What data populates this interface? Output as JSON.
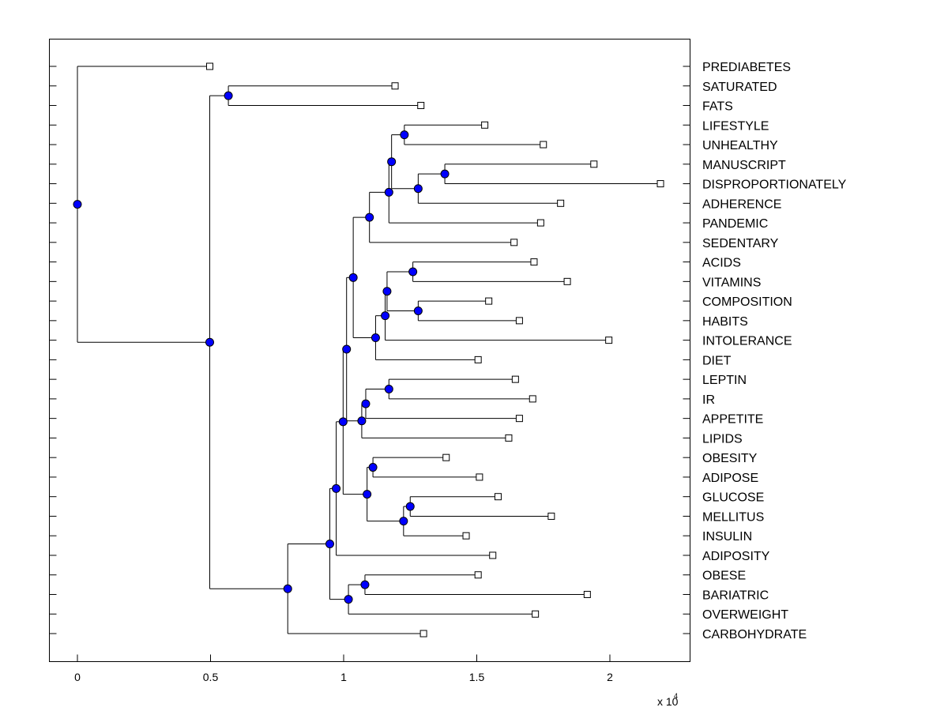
{
  "chart_data": {
    "type": "dendrogram",
    "title": "",
    "xlabel": "",
    "ylabel": "",
    "x_scale_label": "x 10",
    "x_scale_exponent": "4",
    "xlim": [
      -0.108,
      2.3
    ],
    "xticks": [
      0,
      0.5,
      1,
      1.5,
      2
    ],
    "xtick_labels": [
      "0",
      "0.5",
      "1",
      "1.5",
      "2"
    ],
    "colors": {
      "node": "#0000ff",
      "leaf": "#ffffff",
      "line": "#000000"
    },
    "leaves": [
      {
        "label": "PREDIABETES",
        "x": 0.497
      },
      {
        "label": "SATURATED",
        "x": 1.193
      },
      {
        "label": "FATS",
        "x": 1.29
      },
      {
        "label": "LIFESTYLE",
        "x": 1.53
      },
      {
        "label": "UNHEALTHY",
        "x": 1.75
      },
      {
        "label": "MANUSCRIPT",
        "x": 1.94
      },
      {
        "label": "DISPROPORTIONATELY",
        "x": 2.19
      },
      {
        "label": "ADHERENCE",
        "x": 1.815
      },
      {
        "label": "PANDEMIC",
        "x": 1.74
      },
      {
        "label": "SEDENTARY",
        "x": 1.64
      },
      {
        "label": "ACIDS",
        "x": 1.715
      },
      {
        "label": "VITAMINS",
        "x": 1.84
      },
      {
        "label": "COMPOSITION",
        "x": 1.545
      },
      {
        "label": "HABITS",
        "x": 1.66
      },
      {
        "label": "INTOLERANCE",
        "x": 1.996
      },
      {
        "label": "DIET",
        "x": 1.505
      },
      {
        "label": "LEPTIN",
        "x": 1.645
      },
      {
        "label": "IR",
        "x": 1.71
      },
      {
        "label": "APPETITE",
        "x": 1.66
      },
      {
        "label": "LIPIDS",
        "x": 1.62
      },
      {
        "label": "OBESITY",
        "x": 1.385
      },
      {
        "label": "ADIPOSE",
        "x": 1.51
      },
      {
        "label": "GLUCOSE",
        "x": 1.58
      },
      {
        "label": "MELLITUS",
        "x": 1.78
      },
      {
        "label": "INSULIN",
        "x": 1.46
      },
      {
        "label": "ADIPOSITY",
        "x": 1.56
      },
      {
        "label": "OBESE",
        "x": 1.505
      },
      {
        "label": "BARIATRIC",
        "x": 1.915
      },
      {
        "label": "OVERWEIGHT",
        "x": 1.72
      },
      {
        "label": "CARBOHYDRATE",
        "x": 1.3
      }
    ],
    "nodes": [
      {
        "id": "n1",
        "x": 0.567,
        "children": [
          "L1",
          "L2"
        ]
      },
      {
        "id": "n2",
        "x": 1.228,
        "children": [
          "L3",
          "L4"
        ]
      },
      {
        "id": "n3",
        "x": 1.38,
        "children": [
          "L5",
          "L6"
        ]
      },
      {
        "id": "n4",
        "x": 1.28,
        "children": [
          "n3",
          "L7"
        ]
      },
      {
        "id": "n5",
        "x": 1.18,
        "children": [
          "n2",
          "n4"
        ]
      },
      {
        "id": "n6",
        "x": 1.17,
        "children": [
          "n5",
          "L8"
        ]
      },
      {
        "id": "n7",
        "x": 1.097,
        "children": [
          "n6",
          "L9"
        ]
      },
      {
        "id": "n8",
        "x": 1.26,
        "children": [
          "L10",
          "L11"
        ]
      },
      {
        "id": "n9",
        "x": 1.28,
        "children": [
          "L12",
          "L13"
        ]
      },
      {
        "id": "n10",
        "x": 1.163,
        "children": [
          "n8",
          "n9"
        ]
      },
      {
        "id": "n11",
        "x": 1.156,
        "children": [
          "n10",
          "L14"
        ]
      },
      {
        "id": "n12",
        "x": 1.12,
        "children": [
          "n11",
          "L15"
        ]
      },
      {
        "id": "n13",
        "x": 1.036,
        "children": [
          "n7",
          "n12"
        ]
      },
      {
        "id": "n14",
        "x": 1.17,
        "children": [
          "L16",
          "L17"
        ]
      },
      {
        "id": "n15",
        "x": 1.083,
        "children": [
          "n14",
          "L18"
        ]
      },
      {
        "id": "n16",
        "x": 1.068,
        "children": [
          "n15",
          "L19"
        ]
      },
      {
        "id": "n17",
        "x": 1.011,
        "children": [
          "n13",
          "n16"
        ]
      },
      {
        "id": "n18",
        "x": 1.11,
        "children": [
          "L20",
          "L21"
        ]
      },
      {
        "id": "n19",
        "x": 1.25,
        "children": [
          "L22",
          "L23"
        ]
      },
      {
        "id": "n20",
        "x": 1.225,
        "children": [
          "n19",
          "L24"
        ]
      },
      {
        "id": "n21",
        "x": 1.088,
        "children": [
          "n18",
          "n20"
        ]
      },
      {
        "id": "n22",
        "x": 0.998,
        "children": [
          "n17",
          "n21"
        ]
      },
      {
        "id": "n23",
        "x": 0.972,
        "children": [
          "n22",
          "L25"
        ]
      },
      {
        "id": "n24",
        "x": 1.08,
        "children": [
          "L26",
          "L27"
        ]
      },
      {
        "id": "n25",
        "x": 1.018,
        "children": [
          "n24",
          "L28"
        ]
      },
      {
        "id": "n26",
        "x": 0.948,
        "children": [
          "n23",
          "n25"
        ]
      },
      {
        "id": "n27",
        "x": 0.79,
        "children": [
          "n26",
          "L29"
        ]
      },
      {
        "id": "n28",
        "x": 0.497,
        "children": [
          "n1",
          "n27"
        ]
      },
      {
        "id": "n29",
        "x": 0.0,
        "children": [
          "L0",
          "n28"
        ]
      }
    ]
  }
}
